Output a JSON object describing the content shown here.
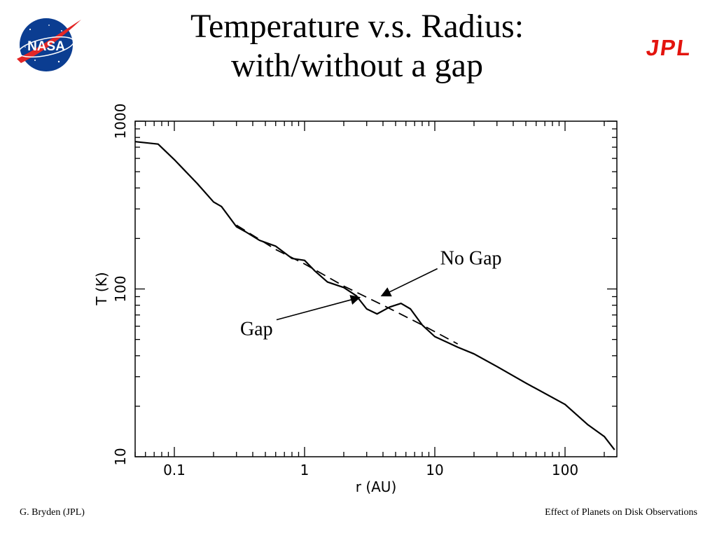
{
  "slide": {
    "title_line1": "Temperature v.s. Radius:",
    "title_line2": "with/without a gap",
    "nasa_logo_text": "NASA",
    "jpl_logo_text": "JPL",
    "footer_left": "G. Bryden (JPL)",
    "footer_right": "Effect of Planets on Disk Observations",
    "colors": {
      "nasa_blue": "#0b3d91",
      "nasa_red": "#e32626",
      "jpl_red": "#e3140e"
    }
  },
  "chart_data": {
    "type": "line",
    "xlabel": "r (AU)",
    "ylabel": "T (K)",
    "x_scale": "log",
    "y_scale": "log",
    "xlim": [
      0.05,
      250
    ],
    "ylim": [
      10,
      1000
    ],
    "x_ticks": [
      0.1,
      1,
      10,
      100
    ],
    "x_tick_labels": [
      "0.1",
      "1",
      "10",
      "100"
    ],
    "y_ticks": [
      10,
      100,
      1000
    ],
    "y_tick_labels": [
      "10",
      "100",
      "1000"
    ],
    "grid": false,
    "series": [
      {
        "style": "solid",
        "points": [
          [
            0.05,
            755
          ],
          [
            0.075,
            730
          ],
          [
            0.1,
            590
          ],
          [
            0.15,
            425
          ],
          [
            0.2,
            330
          ],
          [
            0.23,
            310
          ],
          [
            0.3,
            235
          ],
          [
            0.35,
            220
          ],
          [
            0.45,
            195
          ],
          [
            0.6,
            180
          ],
          [
            0.8,
            152
          ],
          [
            1.0,
            148
          ],
          [
            1.2,
            128
          ],
          [
            1.5,
            110
          ],
          [
            2.0,
            102
          ],
          [
            2.5,
            91
          ],
          [
            3.0,
            76
          ],
          [
            3.6,
            71
          ],
          [
            4.5,
            78
          ],
          [
            5.5,
            82
          ],
          [
            6.5,
            76
          ],
          [
            8.0,
            61
          ],
          [
            10,
            52
          ],
          [
            15,
            45
          ],
          [
            20,
            41
          ],
          [
            30,
            34.5
          ],
          [
            50,
            27.5
          ],
          [
            100,
            20.5
          ],
          [
            150,
            15.5
          ],
          [
            200,
            13.2
          ],
          [
            240,
            11
          ]
        ]
      },
      {
        "style": "dashed",
        "points": [
          [
            0.3,
            240
          ],
          [
            0.6,
            172
          ],
          [
            1.0,
            141
          ],
          [
            2.0,
            104
          ],
          [
            4.0,
            80
          ],
          [
            8.0,
            61
          ],
          [
            15,
            47
          ]
        ]
      }
    ],
    "annotations": [
      {
        "text": "No Gap",
        "x": 11,
        "y": 140,
        "arrow_to": [
          3.9,
          91
        ]
      },
      {
        "text": "Gap",
        "x": 0.32,
        "y": 53,
        "arrow_to": [
          2.65,
          89
        ]
      }
    ]
  }
}
